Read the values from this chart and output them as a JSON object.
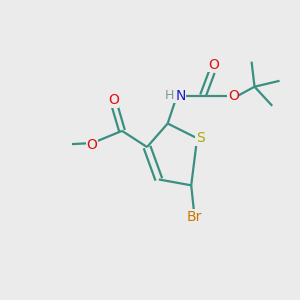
{
  "bg_color": "#ebebeb",
  "bond_color": "#3a8f80",
  "bond_width": 1.6,
  "atom_colors": {
    "C": "#3a8f80",
    "H": "#7a9a9a",
    "N": "#1a1acc",
    "O": "#dd1111",
    "S": "#aaaa00",
    "Br": "#cc7700"
  },
  "font_size": 10
}
